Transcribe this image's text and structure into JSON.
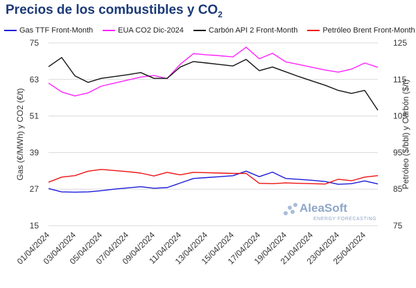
{
  "title_main": "Precios de los combustibles y CO",
  "title_sub": "2",
  "watermark": {
    "brand": "AleaSoft",
    "tagline": "ENERGY FORECASTING"
  },
  "chart_data": {
    "type": "line",
    "x": [
      "01/04/2024",
      "02/04/2024",
      "03/04/2024",
      "04/04/2024",
      "05/04/2024",
      "06/04/2024",
      "07/04/2024",
      "08/04/2024",
      "09/04/2024",
      "10/04/2024",
      "11/04/2024",
      "12/04/2024",
      "13/04/2024",
      "14/04/2024",
      "15/04/2024",
      "16/04/2024",
      "17/04/2024",
      "18/04/2024",
      "19/04/2024",
      "20/04/2024",
      "21/04/2024",
      "22/04/2024",
      "23/04/2024",
      "24/04/2024",
      "25/04/2024",
      "26/04/2024"
    ],
    "x_tick_labels": [
      "01/04/2024",
      "03/04/2024",
      "05/04/2024",
      "07/04/2024",
      "09/04/2024",
      "11/04/2024",
      "13/04/2024",
      "15/04/2024",
      "17/04/2024",
      "19/04/2024",
      "21/04/2024",
      "23/04/2024",
      "25/04/2024"
    ],
    "y_left": {
      "label": "Gas (€/MWh) y CO2 (€/t)",
      "ticks": [
        "75",
        "63",
        "51",
        "39",
        "27",
        "15"
      ],
      "range": [
        15,
        75
      ]
    },
    "y_right": {
      "label": "Petróleo ($/bbl) y Carbón ($/t)",
      "ticks": [
        "125",
        "115",
        "105",
        "95",
        "85",
        "75"
      ],
      "range": [
        75,
        125
      ]
    },
    "grid": "horizontal",
    "legend_position": "top",
    "series": [
      {
        "name": "Gas TTF Front-Month",
        "axis": "left",
        "color": "#1a1adb",
        "values": [
          27.2,
          26.1,
          26.0,
          26.1,
          26.5,
          27.0,
          27.4,
          27.8,
          27.3,
          27.5,
          29.0,
          30.5,
          30.8,
          31.1,
          31.4,
          32.9,
          31.1,
          32.6,
          30.5,
          30.2,
          29.9,
          29.5,
          28.6,
          28.8,
          29.7,
          28.7
        ]
      },
      {
        "name": "EUA CO2 Dic-2024",
        "axis": "left",
        "color": "#ff22ff",
        "values": [
          61.8,
          58.9,
          57.6,
          58.6,
          60.8,
          61.8,
          62.8,
          63.8,
          64.3,
          63.3,
          68.0,
          71.5,
          71.1,
          70.8,
          70.4,
          73.6,
          69.8,
          71.6,
          68.8,
          67.9,
          67.0,
          66.1,
          65.4,
          66.4,
          68.4,
          67.0
        ]
      },
      {
        "name": "Carbón API 2 Front-Month",
        "axis": "right",
        "color": "#111111",
        "values": [
          118.5,
          121.0,
          116.0,
          114.2,
          115.3,
          115.8,
          116.3,
          116.9,
          115.3,
          115.3,
          118.4,
          119.9,
          119.5,
          119.1,
          118.7,
          120.5,
          117.4,
          118.4,
          117.1,
          115.8,
          114.6,
          113.4,
          112.0,
          111.2,
          112.0,
          106.6
        ]
      },
      {
        "name": "Petróleo Brent Front-Month",
        "axis": "right",
        "color": "#ee1111",
        "values": [
          86.9,
          88.3,
          88.7,
          89.9,
          90.4,
          90.1,
          89.8,
          89.4,
          88.6,
          89.6,
          88.9,
          89.6,
          89.5,
          89.4,
          89.3,
          89.3,
          86.6,
          86.5,
          86.7,
          86.6,
          86.5,
          86.4,
          87.7,
          87.3,
          88.3,
          88.7
        ]
      }
    ]
  }
}
